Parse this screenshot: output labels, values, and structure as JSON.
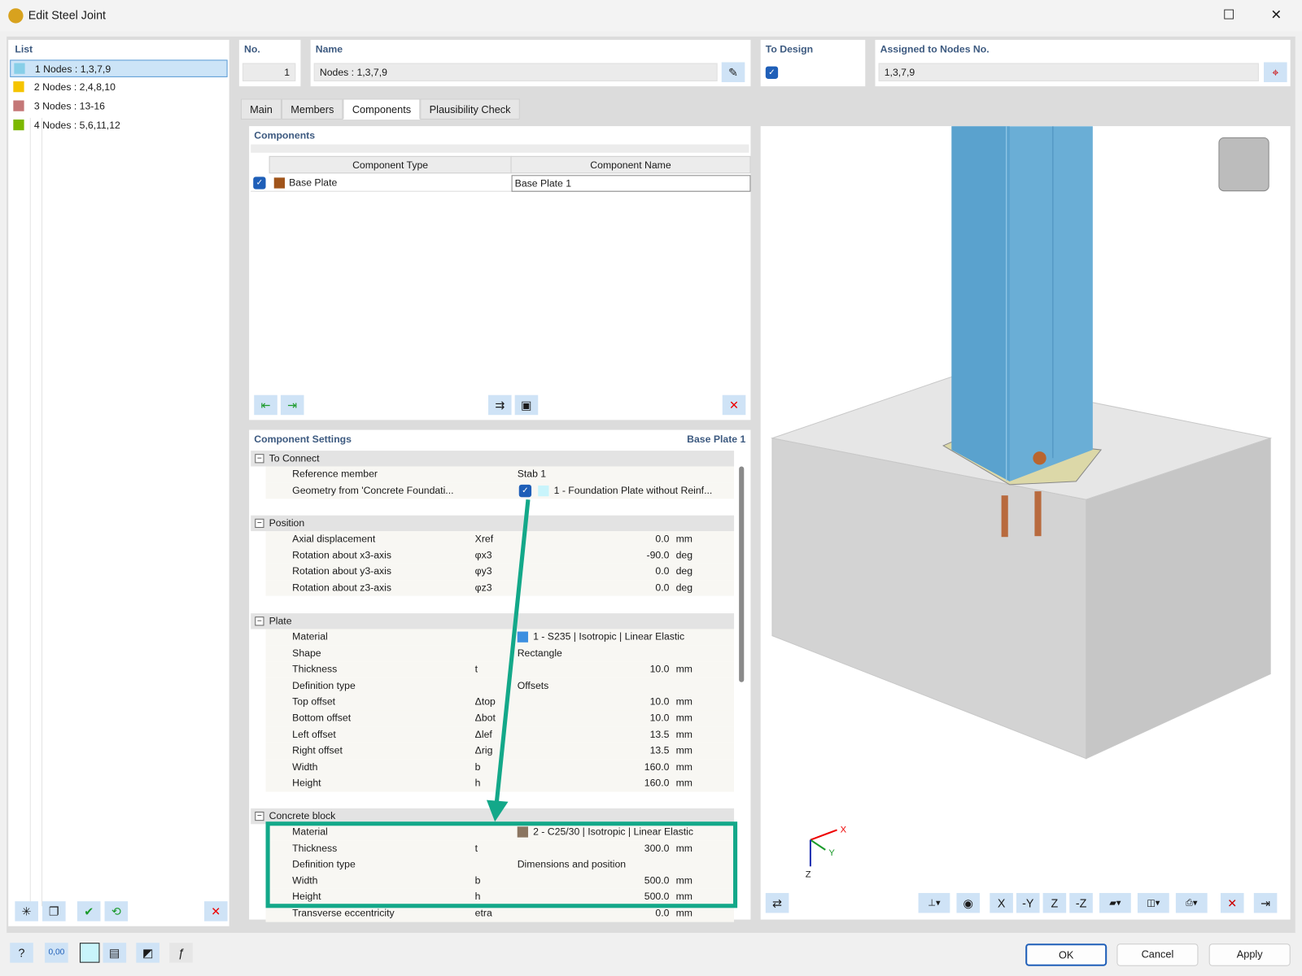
{
  "window": {
    "title": "Edit Steel Joint"
  },
  "list": {
    "header": "List",
    "items": [
      {
        "no": "1",
        "label": "Nodes : 1,3,7,9",
        "color": "#87cfe8"
      },
      {
        "no": "2",
        "label": "Nodes : 2,4,8,10",
        "color": "#f5c400"
      },
      {
        "no": "3",
        "label": "Nodes : 13-16",
        "color": "#c47777"
      },
      {
        "no": "4",
        "label": "Nodes : 5,6,11,12",
        "color": "#7cb800"
      }
    ]
  },
  "header": {
    "no_label": "No.",
    "no_value": "1",
    "name_label": "Name",
    "name_value": "Nodes : 1,3,7,9",
    "to_design_label": "To Design",
    "to_design_checked": true,
    "assigned_label": "Assigned to Nodes No.",
    "assigned_value": "1,3,7,9"
  },
  "tabs": [
    "Main",
    "Members",
    "Components",
    "Plausibility Check"
  ],
  "active_tab": "Components",
  "components": {
    "header": "Components",
    "col_type": "Component Type",
    "col_name": "Component Name",
    "rows": [
      {
        "checked": true,
        "type": "Base Plate",
        "name": "Base Plate 1",
        "color": "#a0541a"
      }
    ]
  },
  "settings": {
    "header": "Component Settings",
    "subject": "Base Plate 1",
    "sections": {
      "to_connect": {
        "title": "To Connect",
        "rows": [
          {
            "label": "Reference member",
            "value": "Stab 1"
          },
          {
            "label": "Geometry from 'Concrete Foundati...",
            "value": "1 - Foundation Plate without Reinf..."
          }
        ]
      },
      "position": {
        "title": "Position",
        "rows": [
          {
            "label": "Axial displacement",
            "sym": "Xref",
            "num": "0.0",
            "unit": "mm"
          },
          {
            "label": "Rotation about x3-axis",
            "sym": "φx3",
            "num": "-90.0",
            "unit": "deg"
          },
          {
            "label": "Rotation about y3-axis",
            "sym": "φy3",
            "num": "0.0",
            "unit": "deg"
          },
          {
            "label": "Rotation about z3-axis",
            "sym": "φz3",
            "num": "0.0",
            "unit": "deg"
          }
        ]
      },
      "plate": {
        "title": "Plate",
        "rows": [
          {
            "label": "Material",
            "value": "1 - S235 | Isotropic | Linear Elastic"
          },
          {
            "label": "Shape",
            "value": "Rectangle"
          },
          {
            "label": "Thickness",
            "sym": "t",
            "num": "10.0",
            "unit": "mm"
          },
          {
            "label": "Definition type",
            "value": "Offsets"
          },
          {
            "label": "Top offset",
            "sym": "Δtop",
            "num": "10.0",
            "unit": "mm"
          },
          {
            "label": "Bottom offset",
            "sym": "Δbot",
            "num": "10.0",
            "unit": "mm"
          },
          {
            "label": "Left offset",
            "sym": "Δlef",
            "num": "13.5",
            "unit": "mm"
          },
          {
            "label": "Right offset",
            "sym": "Δrig",
            "num": "13.5",
            "unit": "mm"
          },
          {
            "label": "Width",
            "sym": "b",
            "num": "160.0",
            "unit": "mm"
          },
          {
            "label": "Height",
            "sym": "h",
            "num": "160.0",
            "unit": "mm"
          }
        ]
      },
      "concrete": {
        "title": "Concrete block",
        "rows": [
          {
            "label": "Material",
            "value": "2 - C25/30 | Isotropic | Linear Elastic"
          },
          {
            "label": "Thickness",
            "sym": "t",
            "num": "300.0",
            "unit": "mm"
          },
          {
            "label": "Definition type",
            "value": "Dimensions and position"
          },
          {
            "label": "Width",
            "sym": "b",
            "num": "500.0",
            "unit": "mm"
          },
          {
            "label": "Height",
            "sym": "h",
            "num": "500.0",
            "unit": "mm"
          },
          {
            "label": "Transverse eccentricity",
            "sym": "etra",
            "num": "0.0",
            "unit": "mm"
          }
        ]
      }
    }
  },
  "viewport": {
    "axes": {
      "x": "X",
      "y": "Y",
      "z": "Z"
    }
  },
  "highlight_color": "#13a889",
  "footer": {
    "ok": "OK",
    "cancel": "Cancel",
    "apply": "Apply",
    "units_icon_text": "0,00"
  }
}
